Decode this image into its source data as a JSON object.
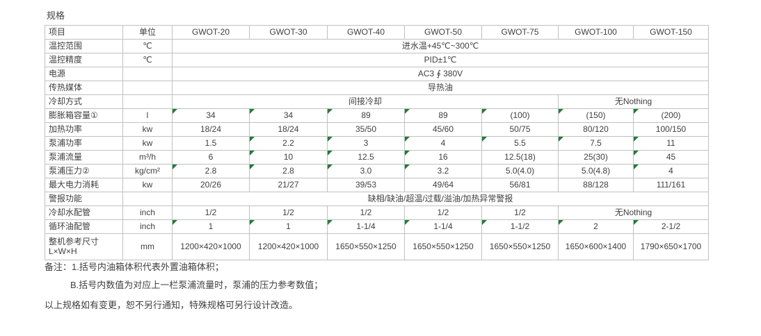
{
  "title": "规格",
  "colors": {
    "border": "#c0c0c0",
    "text": "#404040",
    "flag_green": "#1e7e34",
    "background": "#ffffff"
  },
  "table": {
    "header": [
      "项目",
      "单位",
      "GWOT-20",
      "GWOT-30",
      "GWOT-40",
      "GWOT-50",
      "GWOT-75",
      "GWOT-100",
      "GWOT-150"
    ],
    "rows": [
      {
        "label": "温控范围",
        "unit": "℃",
        "cells": [
          {
            "text": "进水温+45℃~300℃",
            "span": 7
          }
        ]
      },
      {
        "label": "温控精度",
        "unit": "℃",
        "cells": [
          {
            "text": "PID±1℃",
            "span": 7
          }
        ]
      },
      {
        "label": "电源",
        "unit": "",
        "cells": [
          {
            "text": "AC3 ∮ 380V",
            "span": 7
          }
        ]
      },
      {
        "label": "传热媒体",
        "unit": "",
        "cells": [
          {
            "text": "导热油",
            "span": 7
          }
        ]
      },
      {
        "label": "冷却方式",
        "unit": "",
        "cells": [
          {
            "text": "间接冷却",
            "span": 5
          },
          {
            "text": "无Nothing",
            "span": 2
          }
        ]
      },
      {
        "label": "膨胀箱容量①",
        "unit": "l",
        "cells": [
          {
            "text": "34",
            "flag": true
          },
          {
            "text": "34",
            "flag": true
          },
          {
            "text": "89",
            "flag": true
          },
          {
            "text": "89",
            "flag": true
          },
          {
            "text": "(100)",
            "flag": true
          },
          {
            "text": "(150)",
            "flag": true
          },
          {
            "text": "(200)",
            "flag": true
          }
        ]
      },
      {
        "label": "加热功率",
        "unit": "kw",
        "cells": [
          {
            "text": "18/24"
          },
          {
            "text": "18/24"
          },
          {
            "text": "35/50"
          },
          {
            "text": "45/60"
          },
          {
            "text": "50/75"
          },
          {
            "text": "80/120"
          },
          {
            "text": "100/150"
          }
        ]
      },
      {
        "label": "泵浦功率",
        "unit": "kw",
        "cells": [
          {
            "text": "1.5"
          },
          {
            "text": "2.2",
            "flag": true
          },
          {
            "text": "3",
            "flag": true
          },
          {
            "text": "4",
            "flag": true
          },
          {
            "text": "5.5",
            "flag": true
          },
          {
            "text": "7.5",
            "flag": true
          },
          {
            "text": "11",
            "flag": true
          }
        ]
      },
      {
        "label": "泵浦流量",
        "unit": "m³/h",
        "cells": [
          {
            "text": "6"
          },
          {
            "text": "10",
            "flag": true
          },
          {
            "text": "12.5",
            "flag": true
          },
          {
            "text": "16",
            "flag": true
          },
          {
            "text": "12.5(18)"
          },
          {
            "text": "25(30)"
          },
          {
            "text": "45",
            "flag": true
          }
        ]
      },
      {
        "label": "泵浦压力②",
        "unit": "kg/cm²",
        "cells": [
          {
            "text": "2.8",
            "flag": true
          },
          {
            "text": "2.8",
            "flag": true
          },
          {
            "text": "3.0",
            "flag": true
          },
          {
            "text": "3.2",
            "flag": true
          },
          {
            "text": "5.0(4.0)"
          },
          {
            "text": "5.0(4.8)"
          },
          {
            "text": "4",
            "flag": true
          }
        ]
      },
      {
        "label": "最大电力消耗",
        "unit": "kw",
        "cells": [
          {
            "text": "20/26"
          },
          {
            "text": "21/27"
          },
          {
            "text": "39/53"
          },
          {
            "text": "49/64"
          },
          {
            "text": "56/81"
          },
          {
            "text": "88/128"
          },
          {
            "text": "111/161"
          }
        ]
      },
      {
        "label": "警报功能",
        "unit": "",
        "cells": [
          {
            "text": "缺相/缺油/超温/过载/溢油/加热异常警报",
            "span": 7
          }
        ]
      },
      {
        "label": "冷却水配管",
        "unit": "inch",
        "cells": [
          {
            "text": "1/2"
          },
          {
            "text": "1/2"
          },
          {
            "text": "1/2"
          },
          {
            "text": "1/2"
          },
          {
            "text": "1/2"
          },
          {
            "text": "无Nothing",
            "span": 2
          }
        ]
      },
      {
        "label": "循环油配管",
        "unit": "inch",
        "cells": [
          {
            "text": "1",
            "flag": true
          },
          {
            "text": "1",
            "flag": true
          },
          {
            "text": "1-1/4",
            "flag": true
          },
          {
            "text": "1-1/4",
            "flag": true
          },
          {
            "text": "1-1/2",
            "flag": true
          },
          {
            "text": "2",
            "flag": true
          },
          {
            "text": "2-1/2",
            "flag": true
          }
        ]
      },
      {
        "label": "整机参考尺寸\nL×W×H",
        "unit": "mm",
        "tall": true,
        "cells": [
          {
            "text": "1200×420×1000"
          },
          {
            "text": "1200×420×1000"
          },
          {
            "text": "1650×550×1250"
          },
          {
            "text": "1650×550×1250"
          },
          {
            "text": "1650×550×1250"
          },
          {
            "text": "1650×600×1400"
          },
          {
            "text": "1790×650×1700"
          }
        ]
      }
    ]
  },
  "notes": {
    "line1": "备注：1.括号内油箱体积代表外置油箱体积；",
    "line2": "B.括号内数值为对应上一栏泵浦流量时，泵浦的压力参考数值；",
    "line3": "以上规格如有变更，恕不另行通知，特殊规格可另行设计改造。"
  }
}
